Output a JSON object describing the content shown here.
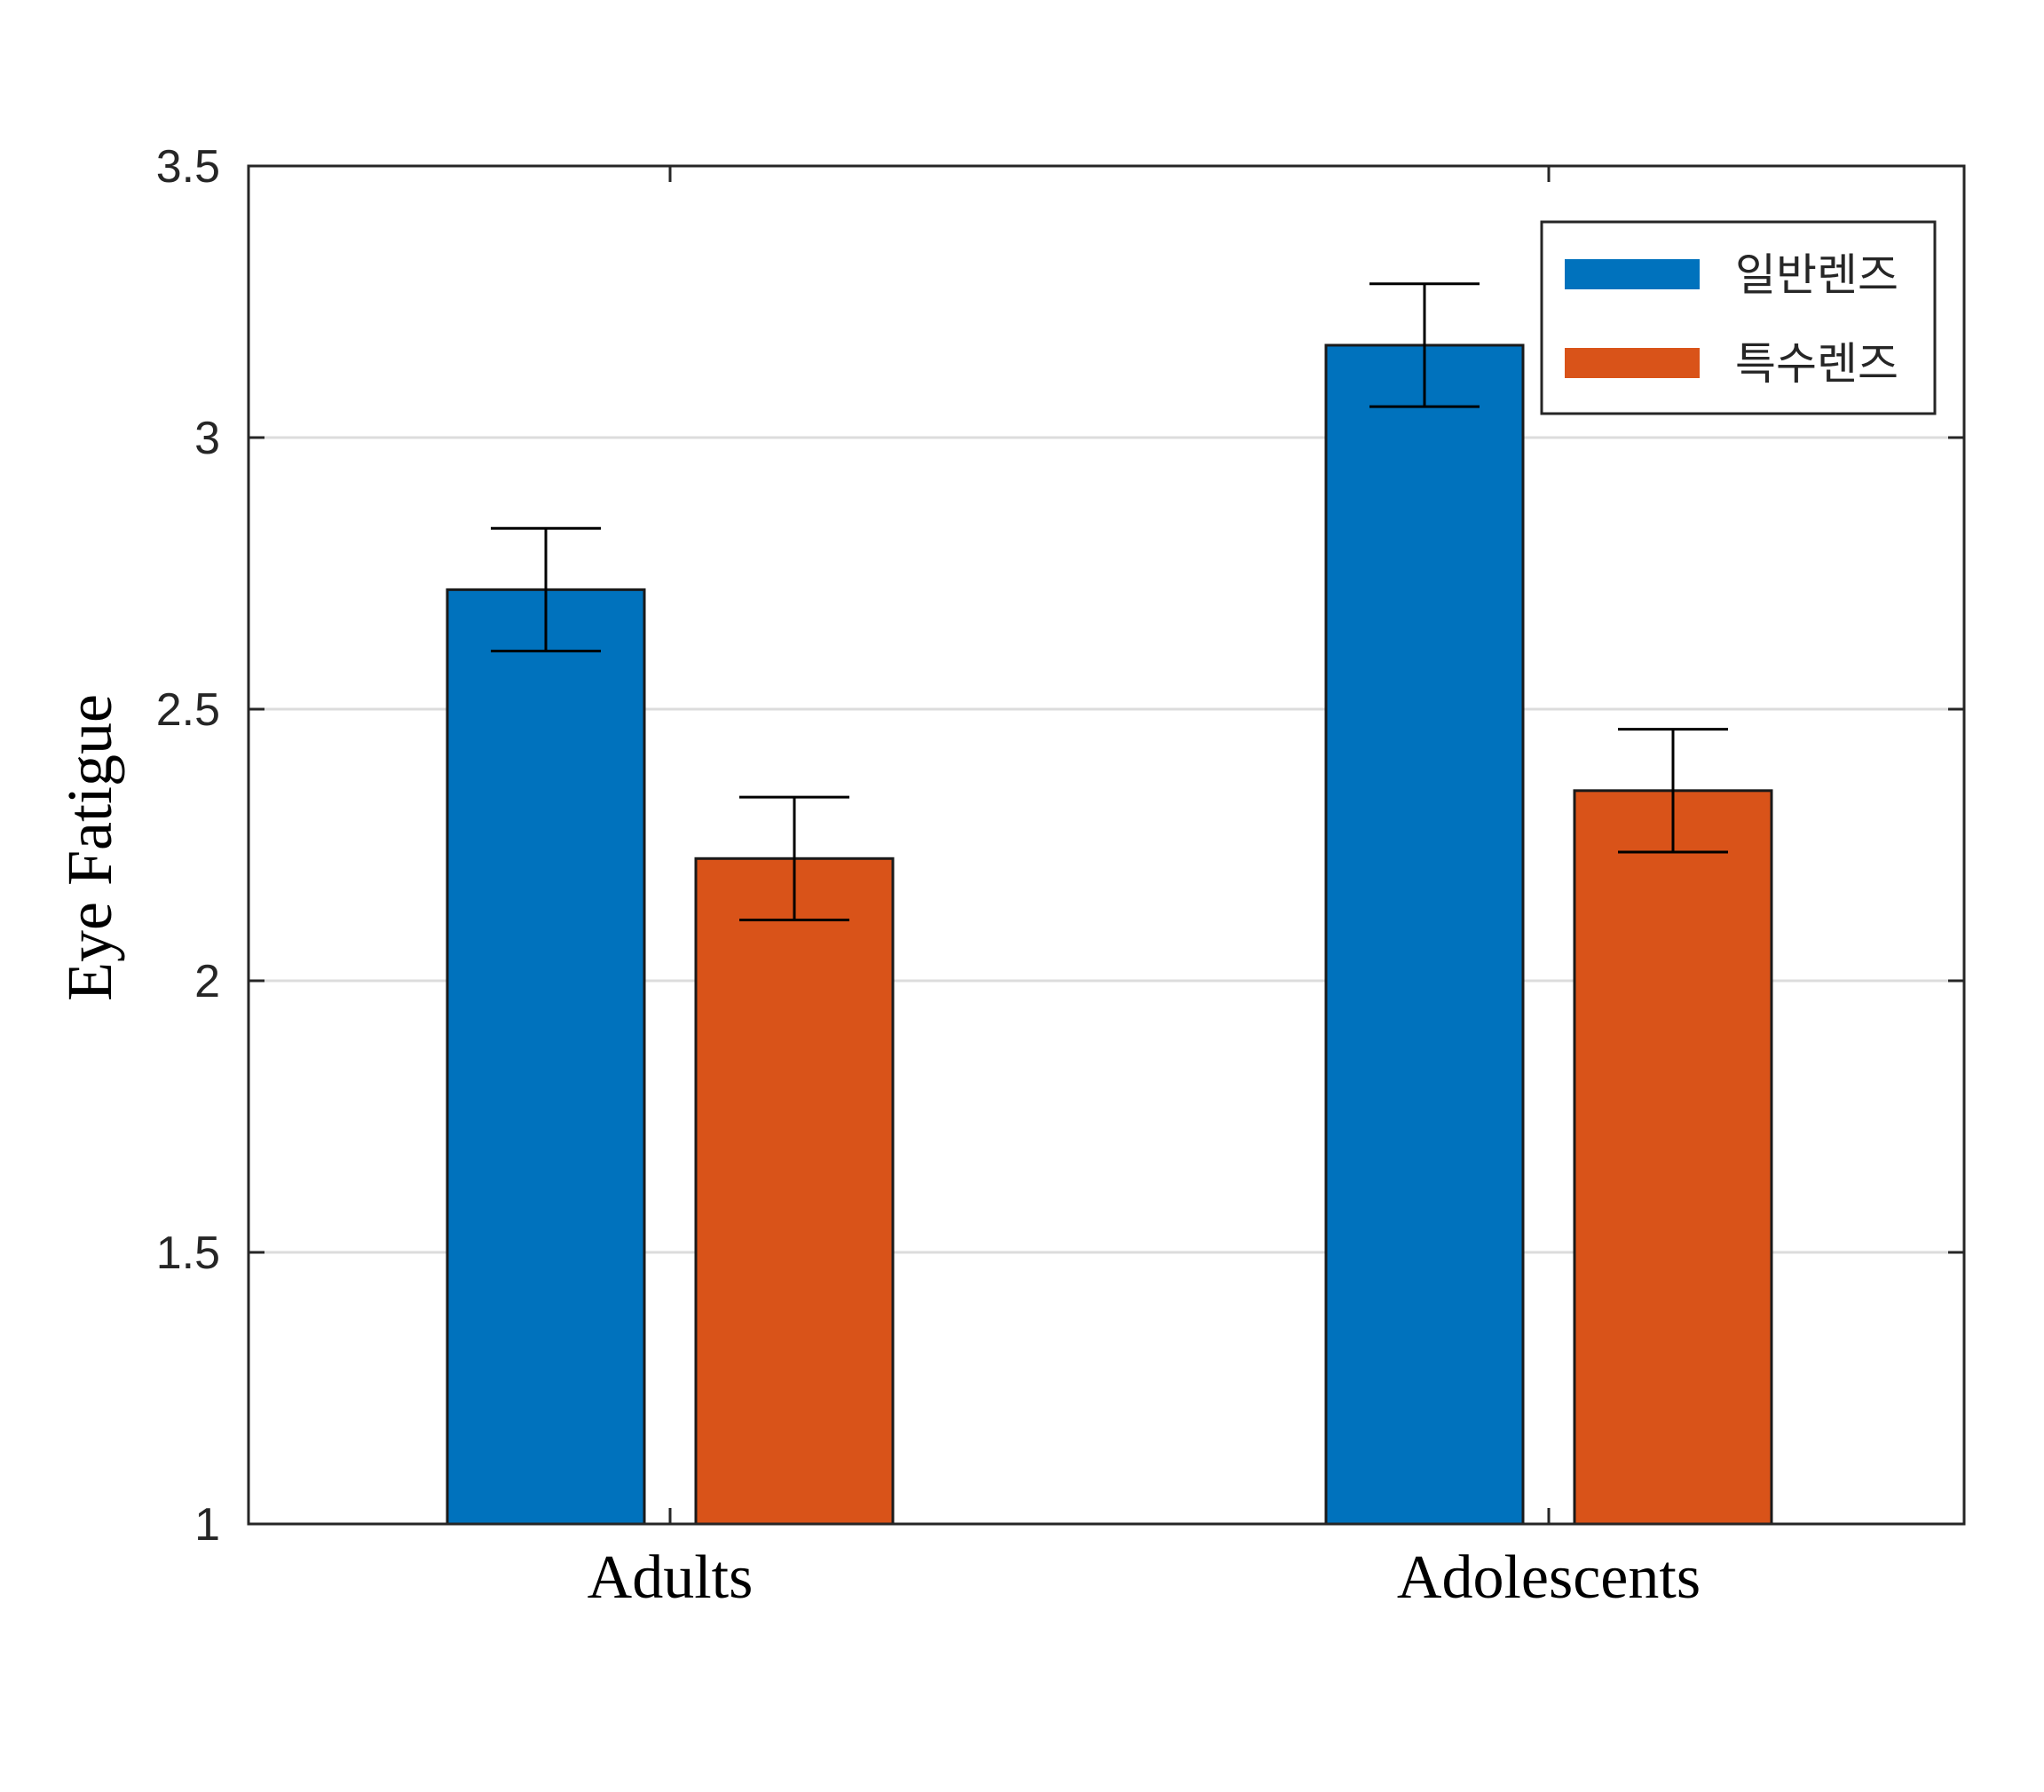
{
  "chart_data": {
    "type": "bar",
    "categories": [
      "Adults",
      "Adolescents"
    ],
    "series": [
      {
        "name": "일반렌즈",
        "values": [
          2.72,
          3.17
        ],
        "errors": [
          0.113,
          0.113
        ],
        "color": "#0072BD"
      },
      {
        "name": "특수렌즈",
        "values": [
          2.225,
          2.35
        ],
        "errors": [
          0.113,
          0.113
        ],
        "color": "#D95319"
      }
    ],
    "title": "",
    "xlabel": "",
    "ylabel": "Eye Fatigue",
    "ylim": [
      1,
      3.5
    ],
    "yticks": [
      "1",
      "1.5",
      "2",
      "2.5",
      "3",
      "3.5"
    ],
    "grid": "horizontal",
    "legend_position": "top-right",
    "error_bars": true
  }
}
